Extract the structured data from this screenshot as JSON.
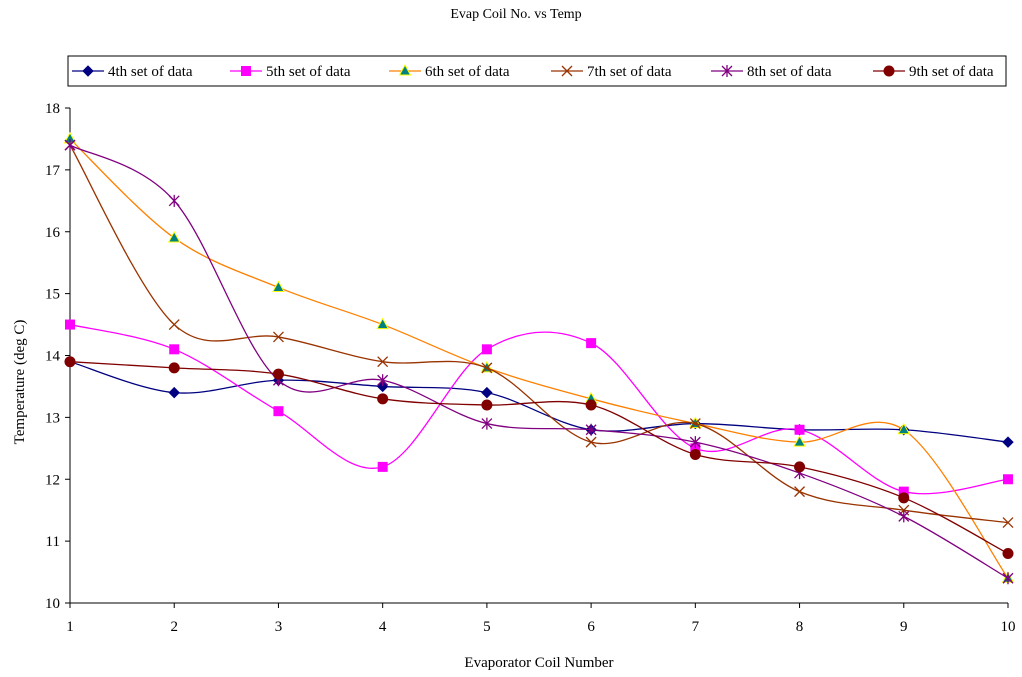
{
  "chart_data": {
    "type": "line",
    "title": "Evap Coil No. vs Temp",
    "xlabel": "Evaporator Coil Number",
    "ylabel": "Temperature (deg C)",
    "x": [
      1,
      2,
      3,
      4,
      5,
      6,
      7,
      8,
      9,
      10
    ],
    "xlim": [
      1,
      10
    ],
    "ylim": [
      10,
      18
    ],
    "yticks": [
      10,
      11,
      12,
      13,
      14,
      15,
      16,
      17,
      18
    ],
    "xticks": [
      1,
      2,
      3,
      4,
      5,
      6,
      7,
      8,
      9,
      10
    ],
    "grid": false,
    "smooth": true,
    "legend": "top",
    "series": [
      {
        "name": "4th set of data",
        "color": "#000080",
        "marker": "diamond",
        "values": [
          13.9,
          13.4,
          13.6,
          13.5,
          13.4,
          12.8,
          12.9,
          12.8,
          12.8,
          12.6
        ]
      },
      {
        "name": "5th set of data",
        "color": "#FF00FF",
        "marker": "square",
        "values": [
          14.5,
          14.1,
          13.1,
          12.2,
          14.1,
          14.2,
          12.5,
          12.8,
          11.8,
          12.0
        ]
      },
      {
        "name": "6th set of data",
        "color": "#FF8000",
        "marker": "triangle",
        "marker_fill": "#008080",
        "marker_edge": "#FFFF00",
        "values": [
          17.5,
          15.9,
          15.1,
          14.5,
          13.8,
          13.3,
          12.9,
          12.6,
          12.8,
          10.4
        ]
      },
      {
        "name": "7th set of data",
        "color": "#993300",
        "marker": "x",
        "values": [
          17.4,
          14.5,
          14.3,
          13.9,
          13.8,
          12.6,
          12.9,
          11.8,
          11.5,
          11.3
        ]
      },
      {
        "name": "8th set of data",
        "color": "#800080",
        "marker": "star",
        "values": [
          17.4,
          16.5,
          13.6,
          13.6,
          12.9,
          12.8,
          12.6,
          12.1,
          11.4,
          10.4
        ]
      },
      {
        "name": "9th set of data",
        "color": "#800000",
        "marker": "circle",
        "values": [
          13.9,
          13.8,
          13.7,
          13.3,
          13.2,
          13.2,
          12.4,
          12.2,
          11.7,
          10.8
        ]
      }
    ]
  }
}
